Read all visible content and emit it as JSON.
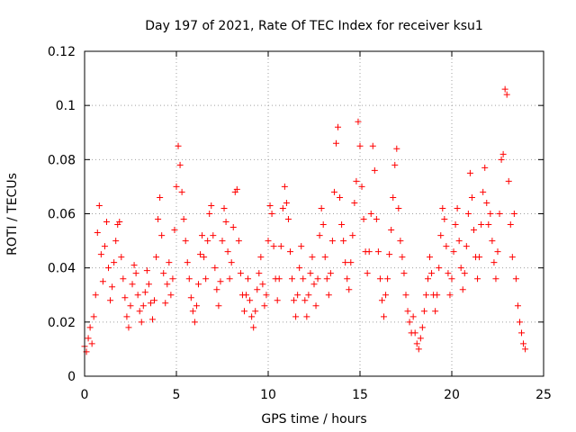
{
  "chart_data": {
    "type": "scatter",
    "title": "Day 197 of 2021, Rate Of TEC Index for receiver ksu1",
    "xlabel": "GPS time / hours",
    "ylabel": "ROTI / TECUs",
    "xlim": [
      0,
      25
    ],
    "ylim": [
      0,
      0.12
    ],
    "xticks": [
      0,
      5,
      10,
      15,
      20,
      25
    ],
    "yticks": [
      0,
      0.02,
      0.04,
      0.06,
      0.08,
      0.1,
      0.12
    ],
    "xtick_labels": [
      "0",
      "5",
      "10",
      "15",
      "20",
      "25"
    ],
    "ytick_labels": [
      "0",
      "0.02",
      "0.04",
      "0.06",
      "0.08",
      "0.1",
      "0.12"
    ],
    "grid": true,
    "legend": "none",
    "marker": "+",
    "color": "#ff0000",
    "series": [
      {
        "points": [
          [
            0.0,
            0.011
          ],
          [
            0.1,
            0.009
          ],
          [
            0.2,
            0.014
          ],
          [
            0.3,
            0.018
          ],
          [
            0.4,
            0.012
          ],
          [
            0.5,
            0.022
          ],
          [
            0.6,
            0.03
          ],
          [
            0.7,
            0.053
          ],
          [
            0.8,
            0.063
          ],
          [
            0.9,
            0.045
          ],
          [
            1.0,
            0.035
          ],
          [
            1.1,
            0.048
          ],
          [
            1.2,
            0.057
          ],
          [
            1.3,
            0.04
          ],
          [
            1.4,
            0.028
          ],
          [
            1.5,
            0.033
          ],
          [
            1.6,
            0.042
          ],
          [
            1.7,
            0.05
          ],
          [
            1.8,
            0.056
          ],
          [
            1.9,
            0.057
          ],
          [
            2.0,
            0.044
          ],
          [
            2.1,
            0.036
          ],
          [
            2.2,
            0.029
          ],
          [
            2.3,
            0.022
          ],
          [
            2.4,
            0.018
          ],
          [
            2.5,
            0.026
          ],
          [
            2.6,
            0.034
          ],
          [
            2.7,
            0.041
          ],
          [
            2.8,
            0.038
          ],
          [
            2.9,
            0.03
          ],
          [
            3.0,
            0.024
          ],
          [
            3.1,
            0.02
          ],
          [
            3.2,
            0.026
          ],
          [
            3.3,
            0.031
          ],
          [
            3.4,
            0.039
          ],
          [
            3.5,
            0.034
          ],
          [
            3.6,
            0.027
          ],
          [
            3.7,
            0.021
          ],
          [
            3.8,
            0.028
          ],
          [
            3.9,
            0.044
          ],
          [
            4.0,
            0.058
          ],
          [
            4.1,
            0.066
          ],
          [
            4.2,
            0.052
          ],
          [
            4.3,
            0.038
          ],
          [
            4.4,
            0.027
          ],
          [
            4.5,
            0.034
          ],
          [
            4.6,
            0.042
          ],
          [
            4.7,
            0.03
          ],
          [
            4.8,
            0.036
          ],
          [
            4.9,
            0.054
          ],
          [
            5.0,
            0.07
          ],
          [
            5.1,
            0.085
          ],
          [
            5.2,
            0.078
          ],
          [
            5.3,
            0.068
          ],
          [
            5.4,
            0.058
          ],
          [
            5.5,
            0.05
          ],
          [
            5.6,
            0.042
          ],
          [
            5.7,
            0.036
          ],
          [
            5.8,
            0.029
          ],
          [
            5.9,
            0.024
          ],
          [
            6.0,
            0.02
          ],
          [
            6.1,
            0.026
          ],
          [
            6.2,
            0.034
          ],
          [
            6.3,
            0.045
          ],
          [
            6.4,
            0.052
          ],
          [
            6.5,
            0.044
          ],
          [
            6.6,
            0.036
          ],
          [
            6.7,
            0.05
          ],
          [
            6.8,
            0.06
          ],
          [
            6.9,
            0.063
          ],
          [
            7.0,
            0.052
          ],
          [
            7.1,
            0.04
          ],
          [
            7.2,
            0.032
          ],
          [
            7.3,
            0.026
          ],
          [
            7.4,
            0.035
          ],
          [
            7.5,
            0.05
          ],
          [
            7.6,
            0.062
          ],
          [
            7.7,
            0.057
          ],
          [
            7.8,
            0.046
          ],
          [
            7.9,
            0.036
          ],
          [
            8.0,
            0.042
          ],
          [
            8.1,
            0.055
          ],
          [
            8.2,
            0.068
          ],
          [
            8.3,
            0.069
          ],
          [
            8.4,
            0.05
          ],
          [
            8.5,
            0.038
          ],
          [
            8.6,
            0.03
          ],
          [
            8.7,
            0.024
          ],
          [
            8.8,
            0.03
          ],
          [
            8.9,
            0.036
          ],
          [
            9.0,
            0.028
          ],
          [
            9.1,
            0.022
          ],
          [
            9.2,
            0.018
          ],
          [
            9.3,
            0.024
          ],
          [
            9.4,
            0.032
          ],
          [
            9.5,
            0.038
          ],
          [
            9.6,
            0.044
          ],
          [
            9.7,
            0.034
          ],
          [
            9.8,
            0.026
          ],
          [
            9.9,
            0.03
          ],
          [
            10.0,
            0.05
          ],
          [
            10.1,
            0.063
          ],
          [
            10.2,
            0.06
          ],
          [
            10.3,
            0.048
          ],
          [
            10.4,
            0.036
          ],
          [
            10.5,
            0.028
          ],
          [
            10.6,
            0.036
          ],
          [
            10.7,
            0.048
          ],
          [
            10.8,
            0.062
          ],
          [
            10.9,
            0.07
          ],
          [
            11.0,
            0.064
          ],
          [
            11.1,
            0.058
          ],
          [
            11.2,
            0.046
          ],
          [
            11.3,
            0.036
          ],
          [
            11.4,
            0.028
          ],
          [
            11.5,
            0.022
          ],
          [
            11.6,
            0.03
          ],
          [
            11.7,
            0.04
          ],
          [
            11.8,
            0.048
          ],
          [
            11.9,
            0.036
          ],
          [
            12.0,
            0.028
          ],
          [
            12.1,
            0.022
          ],
          [
            12.2,
            0.03
          ],
          [
            12.3,
            0.038
          ],
          [
            12.4,
            0.044
          ],
          [
            12.5,
            0.034
          ],
          [
            12.6,
            0.026
          ],
          [
            12.7,
            0.036
          ],
          [
            12.8,
            0.052
          ],
          [
            12.9,
            0.062
          ],
          [
            13.0,
            0.056
          ],
          [
            13.1,
            0.044
          ],
          [
            13.2,
            0.036
          ],
          [
            13.3,
            0.03
          ],
          [
            13.4,
            0.038
          ],
          [
            13.5,
            0.05
          ],
          [
            13.6,
            0.068
          ],
          [
            13.7,
            0.086
          ],
          [
            13.8,
            0.092
          ],
          [
            13.9,
            0.066
          ],
          [
            14.0,
            0.056
          ],
          [
            14.1,
            0.05
          ],
          [
            14.2,
            0.042
          ],
          [
            14.3,
            0.036
          ],
          [
            14.4,
            0.032
          ],
          [
            14.5,
            0.042
          ],
          [
            14.6,
            0.052
          ],
          [
            14.7,
            0.064
          ],
          [
            14.8,
            0.072
          ],
          [
            14.9,
            0.094
          ],
          [
            15.0,
            0.085
          ],
          [
            15.1,
            0.07
          ],
          [
            15.2,
            0.058
          ],
          [
            15.3,
            0.046
          ],
          [
            15.4,
            0.038
          ],
          [
            15.5,
            0.046
          ],
          [
            15.6,
            0.06
          ],
          [
            15.7,
            0.085
          ],
          [
            15.8,
            0.076
          ],
          [
            15.9,
            0.058
          ],
          [
            16.0,
            0.046
          ],
          [
            16.1,
            0.036
          ],
          [
            16.2,
            0.028
          ],
          [
            16.3,
            0.022
          ],
          [
            16.4,
            0.03
          ],
          [
            16.5,
            0.036
          ],
          [
            16.6,
            0.045
          ],
          [
            16.7,
            0.054
          ],
          [
            16.8,
            0.066
          ],
          [
            16.9,
            0.078
          ],
          [
            17.0,
            0.084
          ],
          [
            17.1,
            0.062
          ],
          [
            17.2,
            0.05
          ],
          [
            17.3,
            0.044
          ],
          [
            17.4,
            0.038
          ],
          [
            17.5,
            0.03
          ],
          [
            17.6,
            0.024
          ],
          [
            17.7,
            0.02
          ],
          [
            17.8,
            0.016
          ],
          [
            17.9,
            0.022
          ],
          [
            18.0,
            0.016
          ],
          [
            18.1,
            0.012
          ],
          [
            18.2,
            0.01
          ],
          [
            18.3,
            0.014
          ],
          [
            18.4,
            0.018
          ],
          [
            18.5,
            0.024
          ],
          [
            18.6,
            0.03
          ],
          [
            18.7,
            0.036
          ],
          [
            18.8,
            0.044
          ],
          [
            18.9,
            0.038
          ],
          [
            19.0,
            0.03
          ],
          [
            19.1,
            0.024
          ],
          [
            19.2,
            0.03
          ],
          [
            19.3,
            0.04
          ],
          [
            19.4,
            0.052
          ],
          [
            19.5,
            0.062
          ],
          [
            19.6,
            0.058
          ],
          [
            19.7,
            0.048
          ],
          [
            19.8,
            0.038
          ],
          [
            19.9,
            0.03
          ],
          [
            20.0,
            0.036
          ],
          [
            20.1,
            0.046
          ],
          [
            20.2,
            0.056
          ],
          [
            20.3,
            0.062
          ],
          [
            20.4,
            0.05
          ],
          [
            20.5,
            0.04
          ],
          [
            20.6,
            0.032
          ],
          [
            20.7,
            0.038
          ],
          [
            20.8,
            0.048
          ],
          [
            20.9,
            0.06
          ],
          [
            21.0,
            0.075
          ],
          [
            21.1,
            0.066
          ],
          [
            21.2,
            0.054
          ],
          [
            21.3,
            0.044
          ],
          [
            21.4,
            0.036
          ],
          [
            21.5,
            0.044
          ],
          [
            21.6,
            0.056
          ],
          [
            21.7,
            0.068
          ],
          [
            21.8,
            0.077
          ],
          [
            21.9,
            0.064
          ],
          [
            22.0,
            0.056
          ],
          [
            22.1,
            0.06
          ],
          [
            22.2,
            0.05
          ],
          [
            22.3,
            0.042
          ],
          [
            22.4,
            0.036
          ],
          [
            22.5,
            0.046
          ],
          [
            22.6,
            0.06
          ],
          [
            22.7,
            0.08
          ],
          [
            22.8,
            0.082
          ],
          [
            22.9,
            0.106
          ],
          [
            23.0,
            0.104
          ],
          [
            23.1,
            0.072
          ],
          [
            23.2,
            0.056
          ],
          [
            23.3,
            0.044
          ],
          [
            23.4,
            0.06
          ],
          [
            23.5,
            0.036
          ],
          [
            23.6,
            0.026
          ],
          [
            23.7,
            0.02
          ],
          [
            23.8,
            0.016
          ],
          [
            23.9,
            0.012
          ],
          [
            24.0,
            0.01
          ]
        ]
      }
    ]
  }
}
